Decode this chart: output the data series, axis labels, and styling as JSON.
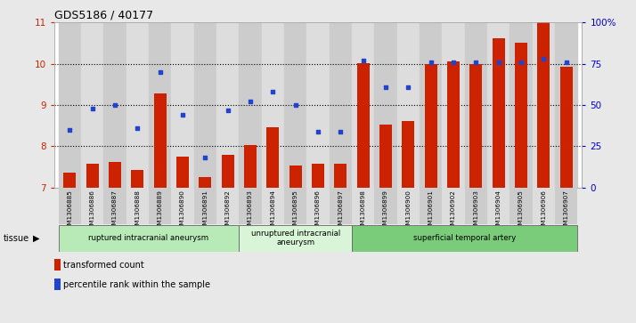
{
  "title": "GDS5186 / 40177",
  "samples": [
    "GSM1306885",
    "GSM1306886",
    "GSM1306887",
    "GSM1306888",
    "GSM1306889",
    "GSM1306890",
    "GSM1306891",
    "GSM1306892",
    "GSM1306893",
    "GSM1306894",
    "GSM1306895",
    "GSM1306896",
    "GSM1306897",
    "GSM1306898",
    "GSM1306899",
    "GSM1306900",
    "GSM1306901",
    "GSM1306902",
    "GSM1306903",
    "GSM1306904",
    "GSM1306905",
    "GSM1306906",
    "GSM1306907"
  ],
  "bar_values": [
    7.35,
    7.58,
    7.62,
    7.42,
    9.28,
    7.75,
    7.25,
    7.78,
    8.02,
    8.45,
    7.52,
    7.58,
    7.58,
    10.02,
    8.52,
    8.62,
    10.0,
    10.05,
    10.0,
    10.62,
    10.52,
    11.0,
    9.92
  ],
  "dot_percentiles": [
    35,
    48,
    50,
    36,
    70,
    44,
    18,
    47,
    52,
    58,
    50,
    34,
    34,
    77,
    61,
    61,
    76,
    76,
    76,
    76,
    76,
    78,
    76
  ],
  "ylim_left": [
    7,
    11
  ],
  "ylim_right": [
    0,
    100
  ],
  "yticks_left": [
    7,
    8,
    9,
    10,
    11
  ],
  "yticks_right": [
    0,
    25,
    50,
    75,
    100
  ],
  "ytick_labels_right": [
    "0",
    "25",
    "50",
    "75",
    "100%"
  ],
  "groups": [
    {
      "label": "ruptured intracranial aneurysm",
      "start": 0,
      "end": 8,
      "color": "#b8eab8"
    },
    {
      "label": "unruptured intracranial\naneurysm",
      "start": 8,
      "end": 13,
      "color": "#d8f5d8"
    },
    {
      "label": "superficial temporal artery",
      "start": 13,
      "end": 23,
      "color": "#7acc7a"
    }
  ],
  "bar_color": "#cc2200",
  "dot_color": "#2244cc",
  "bar_width": 0.55,
  "bg_color": "#e8e8e8",
  "plot_bg": "#ffffff",
  "xtick_bg_even": "#cccccc",
  "xtick_bg_odd": "#dddddd",
  "legend_items": [
    {
      "label": "transformed count",
      "color": "#cc2200"
    },
    {
      "label": "percentile rank within the sample",
      "color": "#2244cc"
    }
  ],
  "left_ytick_color": "#cc2200",
  "right_ytick_color": "#0000cc"
}
